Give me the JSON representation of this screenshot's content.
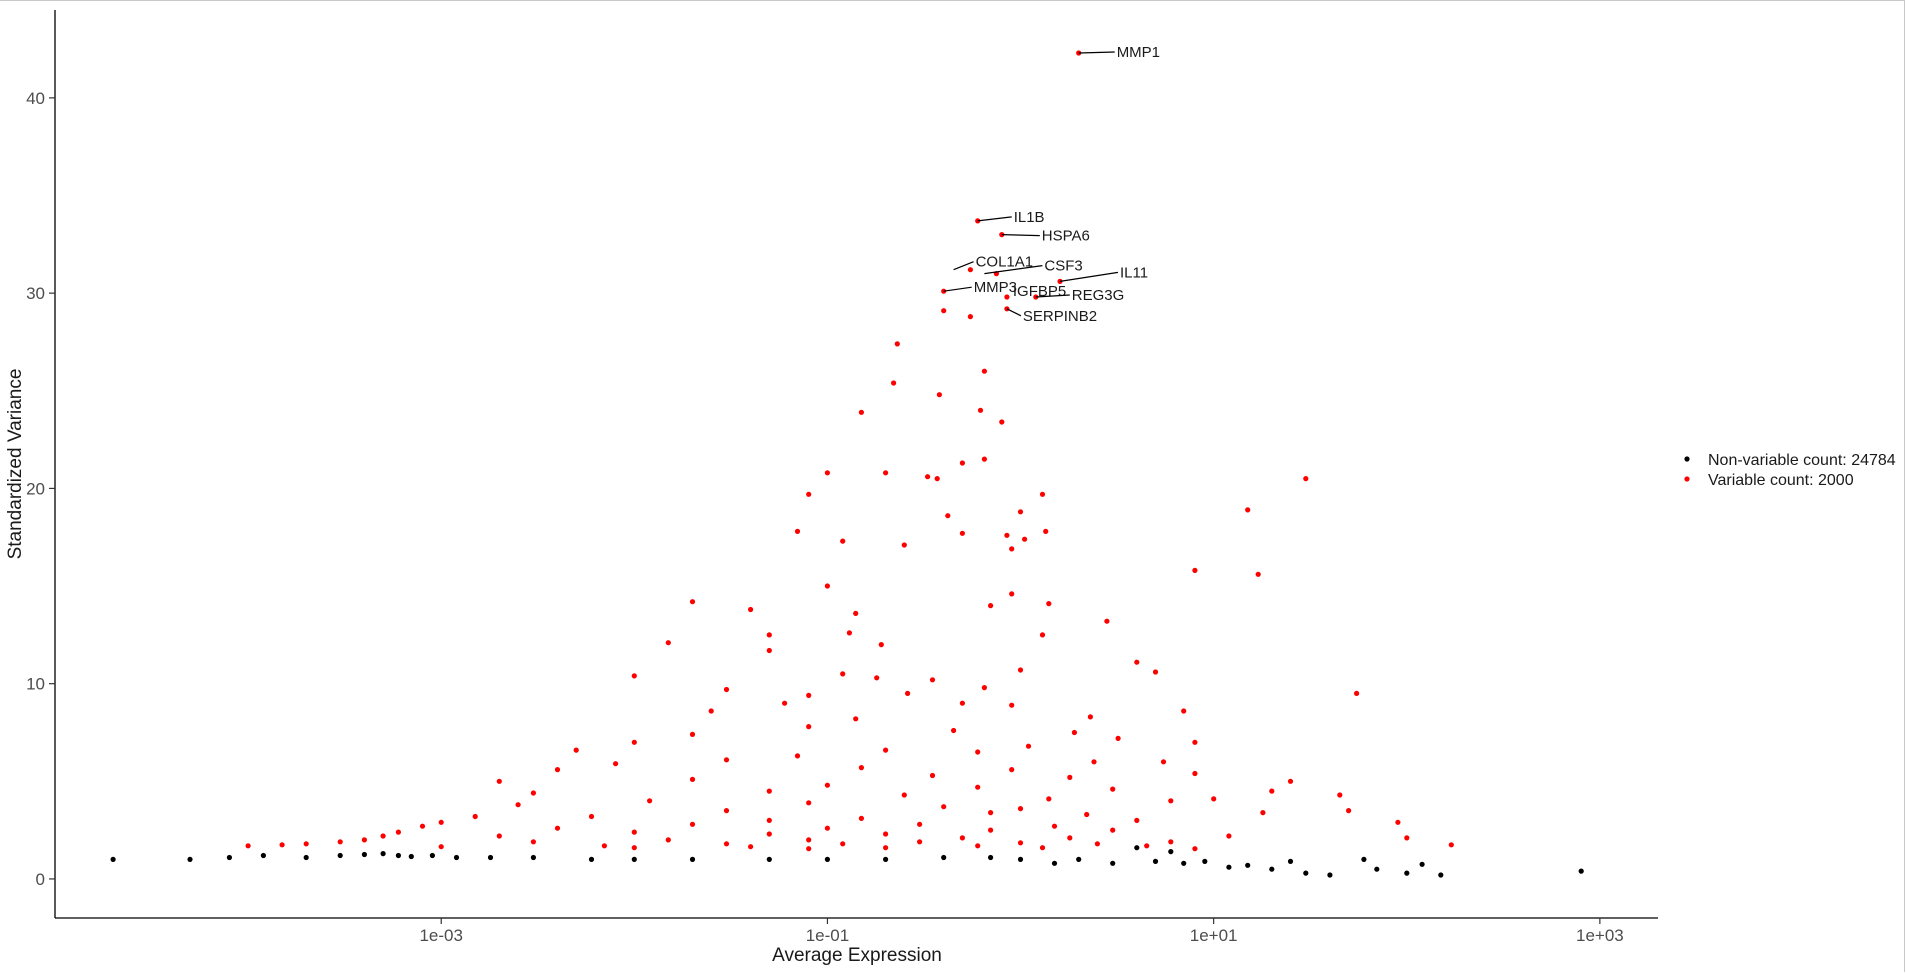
{
  "chart_data": {
    "type": "scatter",
    "xlabel": "Average Expression",
    "ylabel": "Standardized Variance",
    "x_scale": "log10",
    "xlim": [
      1e-05,
      2000
    ],
    "ylim": [
      -2,
      44.5
    ],
    "x_ticks": [
      {
        "value": 0.001,
        "label": "1e-03"
      },
      {
        "value": 0.1,
        "label": "1e-01"
      },
      {
        "value": 10,
        "label": "1e+01"
      },
      {
        "value": 1000,
        "label": "1e+03"
      }
    ],
    "y_ticks": [
      {
        "value": 0,
        "label": "0"
      },
      {
        "value": 10,
        "label": "10"
      },
      {
        "value": 20,
        "label": "20"
      },
      {
        "value": 30,
        "label": "30"
      },
      {
        "value": 40,
        "label": "40"
      }
    ],
    "grid": false,
    "legend_position": "right",
    "series": [
      {
        "name": "Non-variable count: 24784",
        "color": "#000000",
        "count": 24784,
        "points": [
          [
            2e-05,
            1.0
          ],
          [
            5e-05,
            1.0
          ],
          [
            8e-05,
            1.1
          ],
          [
            0.00012,
            1.2
          ],
          [
            0.0002,
            1.1
          ],
          [
            0.0003,
            1.2
          ],
          [
            0.0004,
            1.25
          ],
          [
            0.0005,
            1.3
          ],
          [
            0.0006,
            1.2
          ],
          [
            0.0007,
            1.15
          ],
          [
            0.0009,
            1.2
          ],
          [
            0.0012,
            1.1
          ],
          [
            0.0018,
            1.1
          ],
          [
            0.003,
            1.1
          ],
          [
            0.006,
            1.0
          ],
          [
            0.01,
            1.0
          ],
          [
            0.02,
            1.0
          ],
          [
            0.05,
            1.0
          ],
          [
            0.1,
            1.0
          ],
          [
            0.2,
            1.0
          ],
          [
            0.4,
            1.1
          ],
          [
            0.7,
            1.1
          ],
          [
            1.0,
            1.0
          ],
          [
            1.5,
            0.8
          ],
          [
            2.0,
            1.0
          ],
          [
            3.0,
            0.8
          ],
          [
            4.0,
            1.6
          ],
          [
            5.0,
            0.9
          ],
          [
            6.0,
            1.4
          ],
          [
            7.0,
            0.8
          ],
          [
            9.0,
            0.9
          ],
          [
            12.0,
            0.6
          ],
          [
            15.0,
            0.7
          ],
          [
            20.0,
            0.5
          ],
          [
            25.0,
            0.9
          ],
          [
            30.0,
            0.3
          ],
          [
            40.0,
            0.2
          ],
          [
            60.0,
            1.0
          ],
          [
            70.0,
            0.5
          ],
          [
            100.0,
            0.3
          ],
          [
            120.0,
            0.75
          ],
          [
            150.0,
            0.2
          ],
          [
            800.0,
            0.4
          ]
        ]
      },
      {
        "name": "Variable count: 2000",
        "color": "#ff0000",
        "count": 2000,
        "points": [
          [
            2.0,
            42.3
          ],
          [
            0.6,
            33.7
          ],
          [
            0.8,
            33.0
          ],
          [
            0.55,
            31.2
          ],
          [
            0.75,
            31.0
          ],
          [
            1.6,
            30.6
          ],
          [
            0.4,
            30.1
          ],
          [
            0.85,
            29.8
          ],
          [
            1.2,
            29.8
          ],
          [
            0.85,
            29.2
          ],
          [
            0.4,
            29.1
          ],
          [
            0.55,
            28.8
          ],
          [
            0.23,
            27.4
          ],
          [
            0.65,
            26.0
          ],
          [
            0.22,
            25.4
          ],
          [
            0.38,
            24.8
          ],
          [
            0.15,
            23.9
          ],
          [
            0.62,
            24.0
          ],
          [
            0.8,
            23.4
          ],
          [
            0.65,
            21.5
          ],
          [
            0.5,
            21.3
          ],
          [
            0.33,
            20.6
          ],
          [
            0.37,
            20.5
          ],
          [
            0.08,
            19.7
          ],
          [
            0.2,
            20.8
          ],
          [
            0.1,
            20.8
          ],
          [
            1.3,
            19.7
          ],
          [
            15.0,
            18.9
          ],
          [
            30.0,
            20.5
          ],
          [
            1.0,
            18.8
          ],
          [
            0.42,
            18.6
          ],
          [
            0.07,
            17.8
          ],
          [
            1.35,
            17.8
          ],
          [
            0.12,
            17.3
          ],
          [
            0.25,
            17.1
          ],
          [
            0.5,
            17.7
          ],
          [
            0.85,
            17.6
          ],
          [
            1.05,
            17.4
          ],
          [
            0.9,
            16.9
          ],
          [
            8.0,
            15.8
          ],
          [
            17.0,
            15.6
          ],
          [
            0.1,
            15.0
          ],
          [
            0.02,
            14.2
          ],
          [
            0.9,
            14.6
          ],
          [
            0.7,
            14.0
          ],
          [
            1.4,
            14.1
          ],
          [
            2.8,
            13.2
          ],
          [
            0.14,
            13.6
          ],
          [
            0.04,
            13.8
          ],
          [
            0.13,
            12.6
          ],
          [
            0.05,
            12.5
          ],
          [
            0.19,
            12.0
          ],
          [
            0.015,
            12.1
          ],
          [
            0.05,
            11.7
          ],
          [
            1.3,
            12.5
          ],
          [
            4.0,
            11.1
          ],
          [
            5.0,
            10.6
          ],
          [
            0.12,
            10.5
          ],
          [
            0.18,
            10.3
          ],
          [
            0.01,
            10.4
          ],
          [
            0.35,
            10.2
          ],
          [
            0.65,
            9.8
          ],
          [
            1.0,
            10.7
          ],
          [
            0.26,
            9.5
          ],
          [
            0.03,
            9.7
          ],
          [
            0.08,
            9.4
          ],
          [
            0.06,
            9.0
          ],
          [
            55.0,
            9.5
          ],
          [
            0.5,
            9.0
          ],
          [
            0.9,
            8.9
          ],
          [
            2.3,
            8.3
          ],
          [
            7.0,
            8.6
          ],
          [
            0.025,
            8.6
          ],
          [
            0.14,
            8.2
          ],
          [
            1.9,
            7.5
          ],
          [
            0.45,
            7.6
          ],
          [
            0.02,
            7.4
          ],
          [
            3.2,
            7.2
          ],
          [
            0.08,
            7.8
          ],
          [
            8.0,
            7.0
          ],
          [
            0.01,
            7.0
          ],
          [
            0.005,
            6.6
          ],
          [
            1.1,
            6.8
          ],
          [
            0.2,
            6.6
          ],
          [
            0.6,
            6.5
          ],
          [
            0.07,
            6.3
          ],
          [
            0.03,
            6.1
          ],
          [
            2.4,
            6.0
          ],
          [
            5.5,
            6.0
          ],
          [
            0.008,
            5.9
          ],
          [
            0.15,
            5.7
          ],
          [
            0.9,
            5.6
          ],
          [
            0.004,
            5.6
          ],
          [
            8.0,
            5.4
          ],
          [
            25.0,
            5.0
          ],
          [
            0.35,
            5.3
          ],
          [
            1.8,
            5.2
          ],
          [
            0.02,
            5.1
          ],
          [
            0.002,
            5.0
          ],
          [
            0.1,
            4.8
          ],
          [
            0.6,
            4.7
          ],
          [
            3.0,
            4.6
          ],
          [
            20.0,
            4.5
          ],
          [
            45.0,
            4.3
          ],
          [
            0.05,
            4.5
          ],
          [
            0.003,
            4.4
          ],
          [
            0.25,
            4.3
          ],
          [
            1.4,
            4.1
          ],
          [
            6.0,
            4.0
          ],
          [
            10.0,
            4.1
          ],
          [
            0.012,
            4.0
          ],
          [
            0.0025,
            3.8
          ],
          [
            0.08,
            3.9
          ],
          [
            0.4,
            3.7
          ],
          [
            1.0,
            3.6
          ],
          [
            0.03,
            3.5
          ],
          [
            50.0,
            3.5
          ],
          [
            18.0,
            3.4
          ],
          [
            0.7,
            3.4
          ],
          [
            2.2,
            3.3
          ],
          [
            0.0015,
            3.2
          ],
          [
            0.006,
            3.2
          ],
          [
            0.15,
            3.1
          ],
          [
            0.05,
            3.0
          ],
          [
            4.0,
            3.0
          ],
          [
            90.0,
            2.9
          ],
          [
            0.001,
            2.9
          ],
          [
            0.02,
            2.8
          ],
          [
            0.3,
            2.8
          ],
          [
            1.5,
            2.7
          ],
          [
            0.0008,
            2.7
          ],
          [
            0.004,
            2.6
          ],
          [
            0.1,
            2.6
          ],
          [
            0.7,
            2.5
          ],
          [
            3.0,
            2.5
          ],
          [
            0.0006,
            2.4
          ],
          [
            0.01,
            2.4
          ],
          [
            0.05,
            2.3
          ],
          [
            0.2,
            2.3
          ],
          [
            12.0,
            2.2
          ],
          [
            0.0005,
            2.2
          ],
          [
            0.002,
            2.2
          ],
          [
            0.5,
            2.1
          ],
          [
            1.8,
            2.1
          ],
          [
            100.0,
            2.1
          ],
          [
            0.0004,
            2.0
          ],
          [
            0.015,
            2.0
          ],
          [
            0.08,
            2.0
          ],
          [
            6.0,
            1.9
          ],
          [
            0.0003,
            1.9
          ],
          [
            0.003,
            1.9
          ],
          [
            0.3,
            1.9
          ],
          [
            1.0,
            1.85
          ],
          [
            0.0002,
            1.8
          ],
          [
            0.03,
            1.8
          ],
          [
            0.12,
            1.8
          ],
          [
            2.5,
            1.8
          ],
          [
            170.0,
            1.75
          ],
          [
            0.00015,
            1.75
          ],
          [
            0.007,
            1.7
          ],
          [
            0.6,
            1.7
          ],
          [
            4.5,
            1.7
          ],
          [
            0.0001,
            1.7
          ],
          [
            0.001,
            1.65
          ],
          [
            0.04,
            1.65
          ],
          [
            0.2,
            1.6
          ],
          [
            1.3,
            1.6
          ],
          [
            0.01,
            1.6
          ],
          [
            0.08,
            1.55
          ],
          [
            8.0,
            1.55
          ]
        ]
      }
    ],
    "annotations": [
      {
        "label": "MMP1",
        "x": 2.0,
        "y": 42.3
      },
      {
        "label": "IL1B",
        "x": 0.6,
        "y": 33.7
      },
      {
        "label": "HSPA6",
        "x": 0.8,
        "y": 33.0
      },
      {
        "label": "COL1A1",
        "x": 0.45,
        "y": 31.2
      },
      {
        "label": "CSF3",
        "x": 0.65,
        "y": 31.0
      },
      {
        "label": "IL11",
        "x": 1.6,
        "y": 30.6
      },
      {
        "label": "MMP3",
        "x": 0.4,
        "y": 30.1
      },
      {
        "label": "IGFBP5",
        "x": 0.85,
        "y": 29.8
      },
      {
        "label": "REG3G",
        "x": 1.2,
        "y": 29.8
      },
      {
        "label": "SERPINB2",
        "x": 0.85,
        "y": 29.2
      }
    ]
  }
}
